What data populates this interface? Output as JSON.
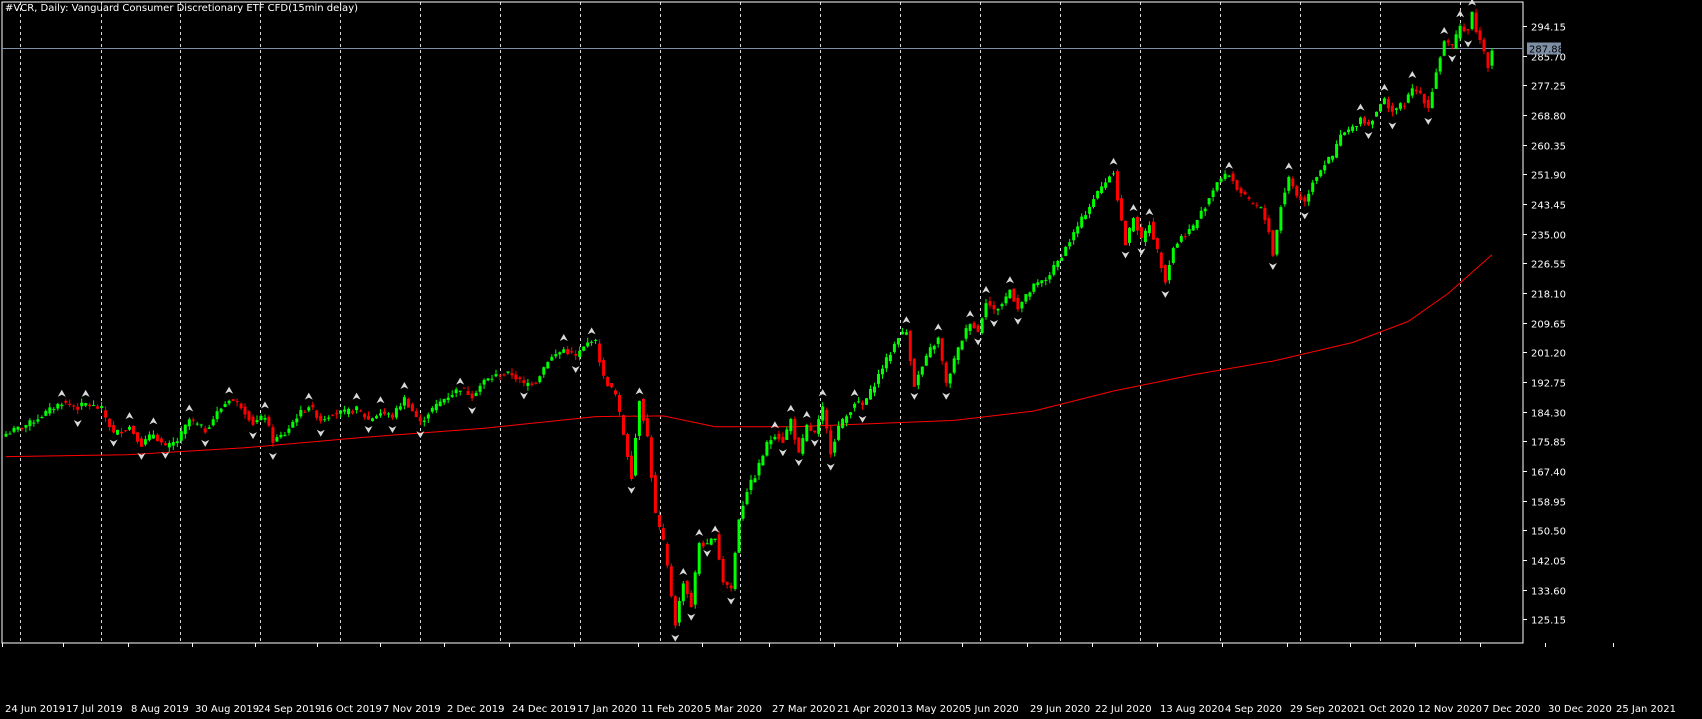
{
  "title": "#VCR, Daily:  Vanguard Consumer Discretionary ETF CFD(15min delay)",
  "colors": {
    "background": "#000000",
    "frame": "#ffffff",
    "grid": "#ffffff",
    "bull": "#00ff00",
    "bear": "#ff0000",
    "ma": "#ff0000",
    "price_line": "#7f8fa6",
    "price_tag_bg": "#7f8fa6"
  },
  "chart_data": {
    "type": "candlestick",
    "symbol": "#VCR",
    "timeframe": "Daily",
    "ylim": [
      118.4,
      301.0
    ],
    "y_ticks": [
      "294.15",
      "285.70",
      "277.25",
      "268.80",
      "260.35",
      "251.90",
      "243.45",
      "235.00",
      "226.55",
      "218.10",
      "209.65",
      "201.20",
      "192.75",
      "184.30",
      "175.85",
      "167.40",
      "158.95",
      "150.50",
      "142.05",
      "133.60",
      "125.15"
    ],
    "x_ticks": [
      "24 Jun 2019",
      "17 Jul 2019",
      "8 Aug 2019",
      "30 Aug 2019",
      "24 Sep 2019",
      "16 Oct 2019",
      "7 Nov 2019",
      "2 Dec 2019",
      "24 Dec 2019",
      "17 Jan 2020",
      "11 Feb 2020",
      "5 Mar 2020",
      "27 Mar 2020",
      "21 Apr 2020",
      "13 May 2020",
      "5 Jun 2020",
      "29 Jun 2020",
      "22 Jul 2020",
      "13 Aug 2020",
      "4 Sep 2020",
      "29 Sep 2020",
      "21 Oct 2020",
      "12 Nov 2020",
      "7 Dec 2020",
      "30 Dec 2020",
      "25 Jan 2021"
    ],
    "current_price": "287.88",
    "current_value": 287.88,
    "price_path": [
      [
        0,
        178.0
      ],
      [
        6,
        181.0
      ],
      [
        10,
        184.0
      ],
      [
        14,
        187.0
      ],
      [
        18,
        185.5
      ],
      [
        20,
        186.5
      ],
      [
        24,
        185.0
      ],
      [
        27,
        178.0
      ],
      [
        31,
        180.0
      ],
      [
        34,
        175.0
      ],
      [
        37,
        178.0
      ],
      [
        40,
        174.0
      ],
      [
        43,
        176.0
      ],
      [
        46,
        182.0
      ],
      [
        50,
        179.0
      ],
      [
        53,
        184.0
      ],
      [
        56,
        188.0
      ],
      [
        59,
        186.0
      ],
      [
        62,
        181.0
      ],
      [
        65,
        183.0
      ],
      [
        67,
        176.0
      ],
      [
        70,
        178.0
      ],
      [
        73,
        183.0
      ],
      [
        76,
        186.0
      ],
      [
        79,
        182.0
      ],
      [
        82,
        184.0
      ],
      [
        85,
        184.0
      ],
      [
        88,
        185.0
      ],
      [
        91,
        182.0
      ],
      [
        94,
        184.0
      ],
      [
        97,
        183.0
      ],
      [
        100,
        188.0
      ],
      [
        104,
        181.0
      ],
      [
        106,
        184.0
      ],
      [
        110,
        188.0
      ],
      [
        114,
        191.0
      ],
      [
        117,
        189.0
      ],
      [
        120,
        193.0
      ],
      [
        124,
        195.0
      ],
      [
        127,
        195.0
      ],
      [
        130,
        192.0
      ],
      [
        133,
        193.0
      ],
      [
        136,
        199.0
      ],
      [
        140,
        202.0
      ],
      [
        143,
        200.0
      ],
      [
        147,
        205.0
      ],
      [
        148,
        204.0
      ],
      [
        150,
        194.0
      ],
      [
        153,
        189.0
      ],
      [
        155,
        178.0
      ],
      [
        157,
        166.0
      ],
      [
        159,
        188.0
      ],
      [
        161,
        177.0
      ],
      [
        163,
        155.0
      ],
      [
        165,
        147.0
      ],
      [
        166,
        140.0
      ],
      [
        168,
        124.0
      ],
      [
        170,
        136.0
      ],
      [
        172,
        129.0
      ],
      [
        174,
        147.0
      ],
      [
        176,
        146.0
      ],
      [
        178,
        149.0
      ],
      [
        180,
        136.0
      ],
      [
        182,
        134.0
      ],
      [
        184,
        154.0
      ],
      [
        186,
        162.0
      ],
      [
        188,
        166.0
      ],
      [
        191,
        175.0
      ],
      [
        193,
        178.0
      ],
      [
        195,
        176.0
      ],
      [
        197,
        182.0
      ],
      [
        199,
        172.0
      ],
      [
        201,
        180.0
      ],
      [
        203,
        178.0
      ],
      [
        205,
        185.0
      ],
      [
        207,
        173.0
      ],
      [
        209,
        180.0
      ],
      [
        211,
        183.0
      ],
      [
        213,
        187.0
      ],
      [
        215,
        186.0
      ],
      [
        217,
        190.0
      ],
      [
        220,
        197.0
      ],
      [
        222,
        201.0
      ],
      [
        224,
        206.0
      ],
      [
        226,
        207.0
      ],
      [
        228,
        192.0
      ],
      [
        230,
        197.0
      ],
      [
        232,
        202.0
      ],
      [
        234,
        205.0
      ],
      [
        236,
        192.0
      ],
      [
        238,
        199.0
      ],
      [
        240,
        205.0
      ],
      [
        242,
        210.0
      ],
      [
        244,
        207.0
      ],
      [
        246,
        216.0
      ],
      [
        248,
        213.0
      ],
      [
        250,
        215.0
      ],
      [
        252,
        219.0
      ],
      [
        254,
        214.0
      ],
      [
        256,
        217.0
      ],
      [
        258,
        220.0
      ],
      [
        261,
        222.0
      ],
      [
        264,
        227.0
      ],
      [
        267,
        233.0
      ],
      [
        270,
        239.0
      ],
      [
        273,
        245.0
      ],
      [
        276,
        250.0
      ],
      [
        278,
        253.0
      ],
      [
        279,
        245.0
      ],
      [
        281,
        232.0
      ],
      [
        283,
        240.0
      ],
      [
        285,
        233.0
      ],
      [
        287,
        238.0
      ],
      [
        289,
        230.0
      ],
      [
        291,
        222.0
      ],
      [
        293,
        231.0
      ],
      [
        295,
        234.0
      ],
      [
        298,
        237.0
      ],
      [
        301,
        243.0
      ],
      [
        304,
        250.0
      ],
      [
        307,
        252.0
      ],
      [
        309,
        248.0
      ],
      [
        312,
        244.0
      ],
      [
        315,
        242.0
      ],
      [
        317,
        236.0
      ],
      [
        318,
        229.0
      ],
      [
        320,
        243.0
      ],
      [
        322,
        251.0
      ],
      [
        324,
        246.0
      ],
      [
        326,
        244.0
      ],
      [
        328,
        250.0
      ],
      [
        331,
        255.0
      ],
      [
        333,
        257.0
      ],
      [
        335,
        263.0
      ],
      [
        338,
        265.0
      ],
      [
        340,
        268.0
      ],
      [
        342,
        266.0
      ],
      [
        344,
        270.0
      ],
      [
        346,
        273.0
      ],
      [
        348,
        270.0
      ],
      [
        351,
        272.0
      ],
      [
        353,
        276.0
      ],
      [
        355,
        275.0
      ],
      [
        357,
        271.0
      ],
      [
        359,
        281.0
      ],
      [
        361,
        290.0
      ],
      [
        363,
        288.0
      ],
      [
        365,
        294.0
      ],
      [
        367,
        293.0
      ],
      [
        368,
        298.0
      ],
      [
        369,
        293.0
      ],
      [
        370,
        290.0
      ],
      [
        371,
        287.0
      ],
      [
        372,
        283.0
      ],
      [
        373,
        288.0
      ]
    ],
    "moving_average": [
      [
        0,
        171.5
      ],
      [
        30,
        172.0
      ],
      [
        60,
        174.0
      ],
      [
        90,
        177.0
      ],
      [
        120,
        179.6
      ],
      [
        148,
        182.9
      ],
      [
        165,
        183.1
      ],
      [
        178,
        180.0
      ],
      [
        198,
        180.0
      ],
      [
        220,
        181.0
      ],
      [
        238,
        181.8
      ],
      [
        258,
        184.5
      ],
      [
        278,
        190.2
      ],
      [
        298,
        194.8
      ],
      [
        318,
        198.7
      ],
      [
        338,
        204.0
      ],
      [
        352,
        210.0
      ],
      [
        362,
        218.0
      ],
      [
        373,
        229.0
      ]
    ]
  }
}
